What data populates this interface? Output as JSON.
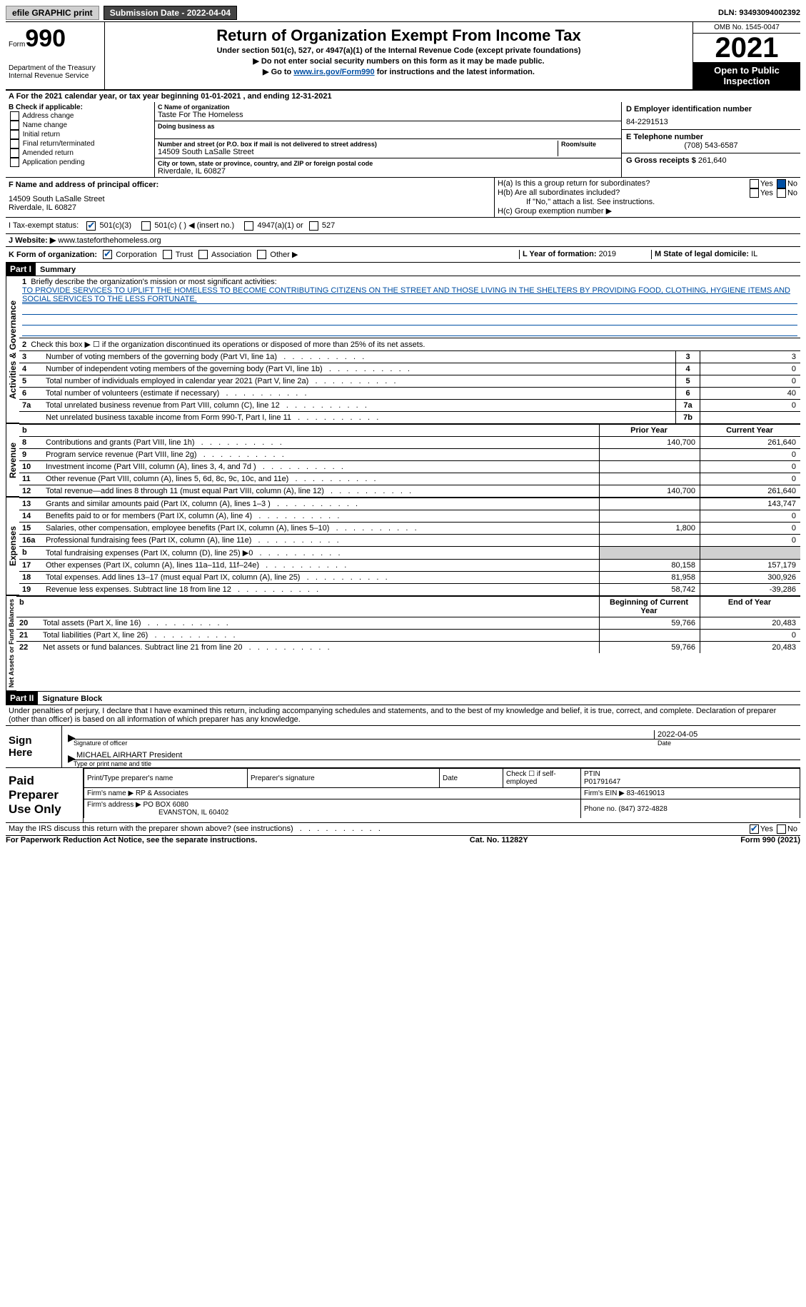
{
  "topbar": {
    "efile": "efile GRAPHIC print",
    "submission": "Submission Date - 2022-04-04",
    "dln": "DLN: 93493094002392"
  },
  "header": {
    "form_prefix": "Form",
    "form_num": "990",
    "dept": "Department of the Treasury",
    "irs": "Internal Revenue Service",
    "title": "Return of Organization Exempt From Income Tax",
    "sub1": "Under section 501(c), 527, or 4947(a)(1) of the Internal Revenue Code (except private foundations)",
    "sub2": "▶ Do not enter social security numbers on this form as it may be made public.",
    "sub3_pre": "▶ Go to ",
    "sub3_link": "www.irs.gov/Form990",
    "sub3_post": " for instructions and the latest information.",
    "omb": "OMB No. 1545-0047",
    "year": "2021",
    "open": "Open to Public Inspection"
  },
  "period": {
    "text": "A For the 2021 calendar year, or tax year beginning 01-01-2021   , and ending 12-31-2021"
  },
  "sectionB": {
    "title": "B Check if applicable:",
    "opts": [
      "Address change",
      "Name change",
      "Initial return",
      "Final return/terminated",
      "Amended return",
      "Application pending"
    ]
  },
  "sectionC": {
    "name_lbl": "C Name of organization",
    "name": "Taste For The Homeless",
    "dba_lbl": "Doing business as",
    "addr_lbl": "Number and street (or P.O. box if mail is not delivered to street address)",
    "room_lbl": "Room/suite",
    "addr": "14509 South LaSalle Street",
    "city_lbl": "City or town, state or province, country, and ZIP or foreign postal code",
    "city": "Riverdale, IL  60827"
  },
  "sectionD": {
    "ein_lbl": "D Employer identification number",
    "ein": "84-2291513",
    "phone_lbl": "E Telephone number",
    "phone": "(708) 543-6587",
    "gross_lbl": "G Gross receipts $ ",
    "gross": "261,640"
  },
  "sectionF": {
    "lbl": "F  Name and address of principal officer:",
    "line1": "14509 South LaSalle Street",
    "line2": "Riverdale, IL  60827"
  },
  "sectionH": {
    "a": "H(a)  Is this a group return for subordinates?",
    "b": "H(b)  Are all subordinates included?",
    "note": "If \"No,\" attach a list. See instructions.",
    "c": "H(c)  Group exemption number ▶"
  },
  "taxExempt": {
    "lbl": "I   Tax-exempt status:",
    "o1": "501(c)(3)",
    "o2": "501(c) (  ) ◀ (insert no.)",
    "o3": "4947(a)(1) or",
    "o4": "527"
  },
  "website": {
    "lbl": "J   Website: ▶",
    "val": "  www.tasteforthehomeless.org"
  },
  "sectionK": {
    "lbl": "K Form of organization:",
    "o1": "Corporation",
    "o2": "Trust",
    "o3": "Association",
    "o4": "Other ▶"
  },
  "sectionL": {
    "lbl": "L Year of formation: ",
    "val": "2019"
  },
  "sectionM": {
    "lbl": "M State of legal domicile: ",
    "val": "IL"
  },
  "part1": {
    "hdr": "Part I",
    "title": "Summary",
    "q1_lbl": "1",
    "q1": "Briefly describe the organization's mission or most significant activities:",
    "mission": "TO PROVIDE SERVICES TO UPLIFT THE HOMELESS TO BECOME CONTRIBUTING CITIZENS ON THE STREET AND THOSE LIVING IN THE SHELTERS BY PROVIDING FOOD, CLOTHING, HYGIENE ITEMS AND SOCIAL SERVICES TO THE LESS FORTUNATE.",
    "q2_lbl": "2",
    "q2": "Check this box ▶ ☐  if the organization discontinued its operations or disposed of more than 25% of its net assets."
  },
  "activities_rows": [
    {
      "n": "3",
      "t": "Number of voting members of the governing body (Part VI, line 1a)",
      "b": "3",
      "v": "3"
    },
    {
      "n": "4",
      "t": "Number of independent voting members of the governing body (Part VI, line 1b)",
      "b": "4",
      "v": "0"
    },
    {
      "n": "5",
      "t": "Total number of individuals employed in calendar year 2021 (Part V, line 2a)",
      "b": "5",
      "v": "0"
    },
    {
      "n": "6",
      "t": "Total number of volunteers (estimate if necessary)",
      "b": "6",
      "v": "40"
    },
    {
      "n": "7a",
      "t": "Total unrelated business revenue from Part VIII, column (C), line 12",
      "b": "7a",
      "v": "0"
    },
    {
      "n": "",
      "t": "Net unrelated business taxable income from Form 990-T, Part I, line 11",
      "b": "7b",
      "v": ""
    }
  ],
  "two_col_hdr": {
    "prior": "Prior Year",
    "cur": "Current Year"
  },
  "revenue_rows": [
    {
      "n": "8",
      "t": "Contributions and grants (Part VIII, line 1h)",
      "p": "140,700",
      "c": "261,640"
    },
    {
      "n": "9",
      "t": "Program service revenue (Part VIII, line 2g)",
      "p": "",
      "c": "0"
    },
    {
      "n": "10",
      "t": "Investment income (Part VIII, column (A), lines 3, 4, and 7d )",
      "p": "",
      "c": "0"
    },
    {
      "n": "11",
      "t": "Other revenue (Part VIII, column (A), lines 5, 6d, 8c, 9c, 10c, and 11e)",
      "p": "",
      "c": "0"
    },
    {
      "n": "12",
      "t": "Total revenue—add lines 8 through 11 (must equal Part VIII, column (A), line 12)",
      "p": "140,700",
      "c": "261,640"
    }
  ],
  "expense_rows": [
    {
      "n": "13",
      "t": "Grants and similar amounts paid (Part IX, column (A), lines 1–3 )",
      "p": "",
      "c": "143,747"
    },
    {
      "n": "14",
      "t": "Benefits paid to or for members (Part IX, column (A), line 4)",
      "p": "",
      "c": "0"
    },
    {
      "n": "15",
      "t": "Salaries, other compensation, employee benefits (Part IX, column (A), lines 5–10)",
      "p": "1,800",
      "c": "0"
    },
    {
      "n": "16a",
      "t": "Professional fundraising fees (Part IX, column (A), line 11e)",
      "p": "",
      "c": "0"
    },
    {
      "n": "b",
      "t": "Total fundraising expenses (Part IX, column (D), line 25) ▶0",
      "p": "shade",
      "c": "shade"
    },
    {
      "n": "17",
      "t": "Other expenses (Part IX, column (A), lines 11a–11d, 11f–24e)",
      "p": "80,158",
      "c": "157,179"
    },
    {
      "n": "18",
      "t": "Total expenses. Add lines 13–17 (must equal Part IX, column (A), line 25)",
      "p": "81,958",
      "c": "300,926"
    },
    {
      "n": "19",
      "t": "Revenue less expenses. Subtract line 18 from line 12",
      "p": "58,742",
      "c": "-39,286"
    }
  ],
  "net_hdr": {
    "beg": "Beginning of Current Year",
    "end": "End of Year"
  },
  "net_rows": [
    {
      "n": "20",
      "t": "Total assets (Part X, line 16)",
      "p": "59,766",
      "c": "20,483"
    },
    {
      "n": "21",
      "t": "Total liabilities (Part X, line 26)",
      "p": "",
      "c": "0"
    },
    {
      "n": "22",
      "t": "Net assets or fund balances. Subtract line 21 from line 20",
      "p": "59,766",
      "c": "20,483"
    }
  ],
  "vert": {
    "gov": "Activities & Governance",
    "rev": "Revenue",
    "exp": "Expenses",
    "net": "Net Assets or Fund Balances"
  },
  "part2": {
    "hdr": "Part II",
    "title": "Signature Block",
    "decl": "Under penalties of perjury, I declare that I have examined this return, including accompanying schedules and statements, and to the best of my knowledge and belief, it is true, correct, and complete. Declaration of preparer (other than officer) is based on all information of which preparer has any knowledge."
  },
  "sign": {
    "here": "Sign Here",
    "sig_lbl": "Signature of officer",
    "date_lbl": "Date",
    "date": "2022-04-05",
    "name": "MICHAEL AIRHART President",
    "name_lbl": "Type or print name and title"
  },
  "paid": {
    "lbl": "Paid Preparer Use Only",
    "c1": "Print/Type preparer's name",
    "c2": "Preparer's signature",
    "c3": "Date",
    "c4": "Check ☐ if self-employed",
    "c5_lbl": "PTIN",
    "c5": "P01791647",
    "firm_lbl": "Firm's name    ▶ ",
    "firm": "RP & Associates",
    "ein_lbl": "Firm's EIN ▶ ",
    "ein": "83-4619013",
    "addr_lbl": "Firm's address ▶ ",
    "addr1": "PO BOX 6080",
    "addr2": "EVANSTON, IL  60402",
    "phone_lbl": "Phone no. ",
    "phone": "(847) 372-4828"
  },
  "discuss": "May the IRS discuss this return with the preparer shown above? (see instructions)",
  "footer": {
    "left": "For Paperwork Reduction Act Notice, see the separate instructions.",
    "mid": "Cat. No. 11282Y",
    "right": "Form 990 (2021)"
  },
  "yes": "Yes",
  "no": "No",
  "b": "b"
}
